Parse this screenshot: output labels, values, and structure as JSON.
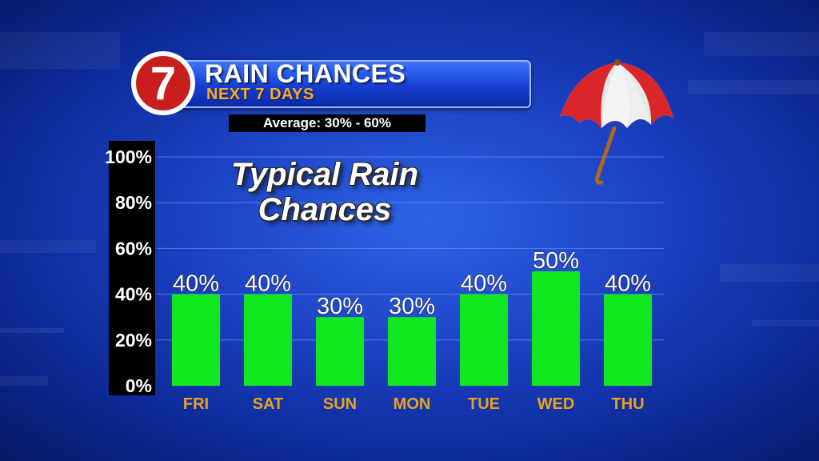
{
  "header": {
    "logo_text": "7",
    "title": "RAIN CHANCES",
    "subtitle": "NEXT 7 DAYS",
    "average_label": "Average: 30% - 60%"
  },
  "overlay_text": {
    "line1": "Typical Rain",
    "line2": "Chances"
  },
  "colors": {
    "bar": "#11e81f",
    "day_label": "#e8a31c",
    "axis_panel": "#000000",
    "grid": "#6d8ff0"
  },
  "chart_data": {
    "type": "bar",
    "title": "RAIN CHANCES",
    "categories": [
      "FRI",
      "SAT",
      "SUN",
      "MON",
      "TUE",
      "WED",
      "THU"
    ],
    "values": [
      40,
      40,
      30,
      30,
      40,
      50,
      40
    ],
    "value_labels": [
      "40%",
      "40%",
      "30%",
      "30%",
      "40%",
      "50%",
      "40%"
    ],
    "ylim": [
      0,
      100
    ],
    "y_ticks": [
      0,
      20,
      40,
      60,
      80,
      100
    ],
    "y_tick_labels": [
      "0%",
      "20%",
      "40%",
      "60%",
      "80%",
      "100%"
    ],
    "grid": true,
    "legend": "none"
  }
}
